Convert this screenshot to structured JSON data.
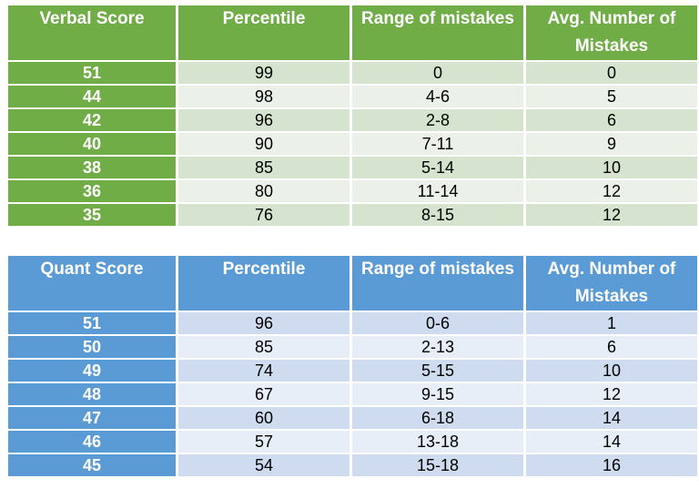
{
  "verbal": {
    "headers": [
      "Verbal Score",
      "Percentile",
      "Range of mistakes",
      "Avg. Number of Mistakes"
    ],
    "rows": [
      [
        "51",
        "99",
        "0",
        "0"
      ],
      [
        "44",
        "98",
        "4-6",
        "5"
      ],
      [
        "42",
        "96",
        "2-8",
        "6"
      ],
      [
        "40",
        "90",
        "7-11",
        "9"
      ],
      [
        "38",
        "85",
        "5-14",
        "10"
      ],
      [
        "36",
        "80",
        "11-14",
        "12"
      ],
      [
        "35",
        "76",
        "8-15",
        "12"
      ]
    ]
  },
  "quant": {
    "headers": [
      "Quant Score",
      "Percentile",
      "Range of mistakes",
      "Avg. Number of Mistakes"
    ],
    "rows": [
      [
        "51",
        "96",
        "0-6",
        "1"
      ],
      [
        "50",
        "85",
        "2-13",
        "6"
      ],
      [
        "49",
        "74",
        "5-15",
        "10"
      ],
      [
        "48",
        "67",
        "9-15",
        "12"
      ],
      [
        "47",
        "60",
        "6-18",
        "14"
      ],
      [
        "46",
        "57",
        "13-18",
        "14"
      ],
      [
        "45",
        "54",
        "15-18",
        "16"
      ]
    ]
  },
  "colors": {
    "verbal_header": "#70ad47",
    "verbal_row_dark": "#d6e4cf",
    "verbal_row_light": "#ebf1e8",
    "quant_header": "#5b9bd5",
    "quant_row_dark": "#cfdbee",
    "quant_row_light": "#e8eef7"
  }
}
